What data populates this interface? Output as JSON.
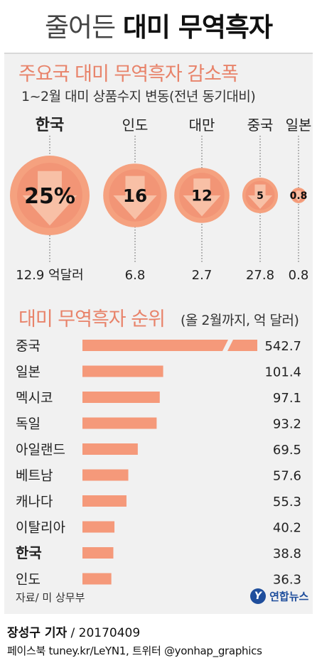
{
  "header": {
    "title_light": "줄어든",
    "title_bold": "대미 무역흑자"
  },
  "section1": {
    "title": "주요국 대미 무역흑자 감소폭",
    "subtitle": "1~2월 대미 상품수지 변동(전년 동기대비)"
  },
  "section2": {
    "title": "대미 무역흑자 순위",
    "unit_note": "(올 2월까지, 억 달러)"
  },
  "footer": {
    "source": "자료/ 미 상무부",
    "logo_mark": "Y",
    "logo_text": "연합뉴스",
    "reporter": "장성구 기자",
    "date": " / 20170409",
    "social": "페이스북 tuney.kr/LeYN1, 트위터 @yonhap_graphics"
  },
  "colors": {
    "accent": "#f5a17f",
    "accent_title": "#e8836a",
    "circle_outer": "#f5a17f",
    "circle_inner": "#f29576",
    "arrow": "#f8c4ac",
    "bar": "#f5997a",
    "panel": "#f1f1f1",
    "logo": "#1f4e9c"
  },
  "chart_data": [
    {
      "type": "bubble",
      "title": "주요국 대미 무역흑자 감소폭",
      "subtitle": "1~2월 대미 상품수지 변동(전년 동기대비)",
      "countries": [
        "한국",
        "인도",
        "대만",
        "중국",
        "일본"
      ],
      "decrease_labels": [
        "25%",
        "16",
        "12",
        "5",
        "0.8"
      ],
      "decrease": [
        25,
        16,
        12,
        5,
        0.8
      ],
      "surplus_labels": [
        "12.9 억달러",
        "6.8",
        "2.7",
        "27.8",
        "0.8"
      ],
      "surplus": [
        12.9,
        6.8,
        2.7,
        27.8,
        0.8
      ],
      "highlight": "한국"
    },
    {
      "type": "bar",
      "orientation": "horizontal",
      "title": "대미 무역흑자 순위",
      "unit": "(올 2월까지, 억 달러)",
      "categories": [
        "중국",
        "일본",
        "멕시코",
        "독일",
        "아일랜드",
        "베트남",
        "캐나다",
        "이탈리아",
        "한국",
        "인도"
      ],
      "values": [
        542.7,
        101.4,
        97.1,
        93.2,
        69.5,
        57.6,
        55.3,
        40.2,
        38.8,
        36.3
      ],
      "value_labels": [
        "542.7",
        "101.4",
        "97.1",
        "93.2",
        "69.5",
        "57.6",
        "55.3",
        "40.2",
        "38.8",
        "36.3"
      ],
      "axis_break": true,
      "highlight": "한국"
    }
  ]
}
